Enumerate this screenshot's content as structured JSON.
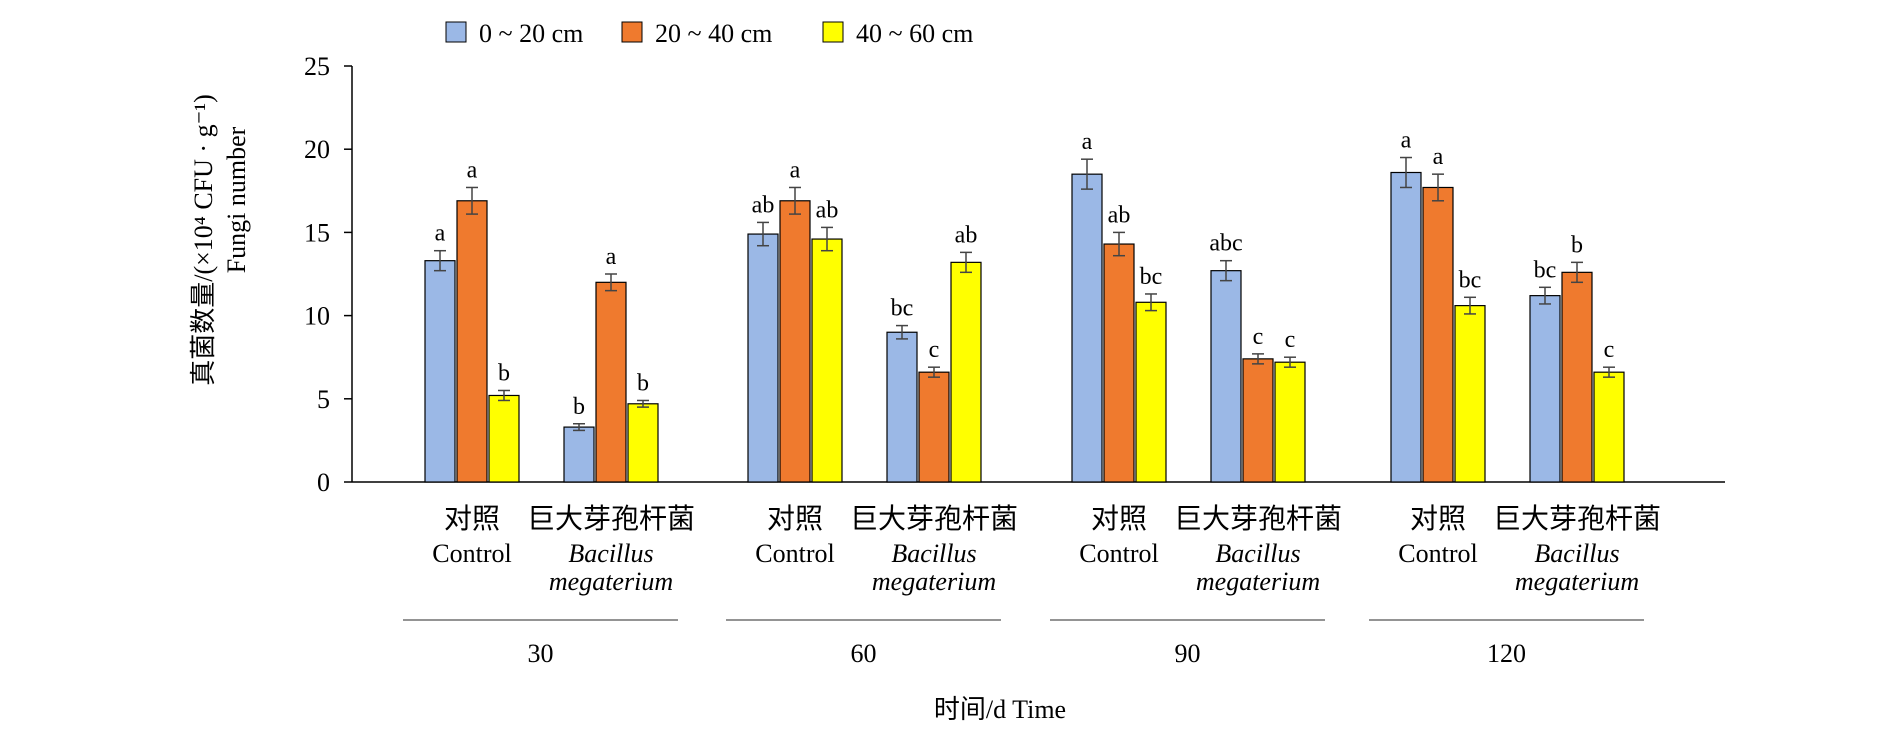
{
  "chart_data": {
    "type": "bar",
    "xlabel": "时间/d Time",
    "ylabel_line1": "真菌数量/(×10⁴ CFU · g⁻¹)",
    "ylabel_line2": "Fungi number",
    "ylim": [
      0,
      25
    ],
    "yticks": [
      "0",
      "5",
      "10",
      "15",
      "20",
      "25"
    ],
    "legend_position": "top",
    "groups": [
      {
        "day": "30",
        "treatments": [
          {
            "label_cn": "对照",
            "label_en": [
              "Control"
            ],
            "italic": false,
            "values": [
              13.3,
              16.9,
              5.2
            ],
            "errors": [
              0.6,
              0.8,
              0.3
            ],
            "sig": [
              "a",
              "a",
              "b"
            ]
          },
          {
            "label_cn": "巨大芽孢杆菌",
            "label_en": [
              "Bacillus",
              "megaterium"
            ],
            "italic": true,
            "values": [
              3.3,
              12.0,
              4.7
            ],
            "errors": [
              0.2,
              0.5,
              0.2
            ],
            "sig": [
              "b",
              "a",
              "b"
            ]
          }
        ]
      },
      {
        "day": "60",
        "treatments": [
          {
            "label_cn": "对照",
            "label_en": [
              "Control"
            ],
            "italic": false,
            "values": [
              14.9,
              16.9,
              14.6
            ],
            "errors": [
              0.7,
              0.8,
              0.7
            ],
            "sig": [
              "ab",
              "a",
              "ab"
            ]
          },
          {
            "label_cn": "巨大芽孢杆菌",
            "label_en": [
              "Bacillus",
              "megaterium"
            ],
            "italic": true,
            "values": [
              9.0,
              6.6,
              13.2
            ],
            "errors": [
              0.4,
              0.3,
              0.6
            ],
            "sig": [
              "bc",
              "c",
              "ab"
            ]
          }
        ]
      },
      {
        "day": "90",
        "treatments": [
          {
            "label_cn": "对照",
            "label_en": [
              "Control"
            ],
            "italic": false,
            "values": [
              18.5,
              14.3,
              10.8
            ],
            "errors": [
              0.9,
              0.7,
              0.5
            ],
            "sig": [
              "a",
              "ab",
              "bc"
            ]
          },
          {
            "label_cn": "巨大芽孢杆菌",
            "label_en": [
              "Bacillus",
              "megaterium"
            ],
            "italic": true,
            "values": [
              12.7,
              7.4,
              7.2
            ],
            "errors": [
              0.6,
              0.3,
              0.3
            ],
            "sig": [
              "abc",
              "c",
              "c"
            ]
          }
        ]
      },
      {
        "day": "120",
        "treatments": [
          {
            "label_cn": "对照",
            "label_en": [
              "Control"
            ],
            "italic": false,
            "values": [
              18.6,
              17.7,
              10.6
            ],
            "errors": [
              0.9,
              0.8,
              0.5
            ],
            "sig": [
              "a",
              "a",
              "bc"
            ]
          },
          {
            "label_cn": "巨大芽孢杆菌",
            "label_en": [
              "Bacillus",
              "megaterium"
            ],
            "italic": true,
            "values": [
              11.2,
              12.6,
              6.6
            ],
            "errors": [
              0.5,
              0.6,
              0.3
            ],
            "sig": [
              "bc",
              "b",
              "c"
            ]
          }
        ]
      }
    ],
    "series": [
      {
        "name": "0 ~ 20 cm",
        "color": "#9bb8e6"
      },
      {
        "name": "20 ~ 40 cm",
        "color": "#ef7a2e"
      },
      {
        "name": "40 ~ 60 cm",
        "color": "#ffff00"
      }
    ]
  }
}
